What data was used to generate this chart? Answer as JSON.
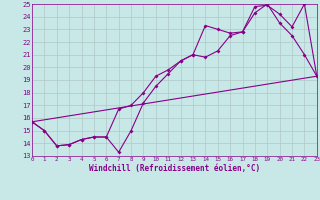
{
  "xlabel": "Windchill (Refroidissement éolien,°C)",
  "bg_color": "#c8e8e8",
  "grid_color": "#b0c8c8",
  "line_color": "#880088",
  "line1_x": [
    0,
    1,
    2,
    3,
    4,
    5,
    6,
    7,
    8,
    9,
    10,
    11,
    12,
    13,
    14,
    15,
    16,
    17,
    18,
    19,
    20,
    21,
    22,
    23
  ],
  "line1_y": [
    15.7,
    15.0,
    13.8,
    13.9,
    14.3,
    14.5,
    14.5,
    13.3,
    15.0,
    17.2,
    18.5,
    19.5,
    20.5,
    21.0,
    23.3,
    23.0,
    22.7,
    22.8,
    24.8,
    24.9,
    24.2,
    23.2,
    25.0,
    19.3
  ],
  "line2_x": [
    0,
    1,
    2,
    3,
    4,
    5,
    6,
    7,
    8,
    9,
    10,
    11,
    12,
    13,
    14,
    15,
    16,
    17,
    18,
    19,
    20,
    21,
    22,
    23
  ],
  "line2_y": [
    15.7,
    15.0,
    13.8,
    13.9,
    14.3,
    14.5,
    14.5,
    16.7,
    17.0,
    18.0,
    19.3,
    19.8,
    20.5,
    21.0,
    20.8,
    21.3,
    22.5,
    22.8,
    24.3,
    25.0,
    23.5,
    22.5,
    21.0,
    19.3
  ],
  "line3_x": [
    0,
    23
  ],
  "line3_y": [
    15.7,
    19.3
  ],
  "xlim": [
    0,
    23
  ],
  "ylim": [
    13,
    25
  ],
  "yticks": [
    13,
    14,
    15,
    16,
    17,
    18,
    19,
    20,
    21,
    22,
    23,
    24,
    25
  ],
  "xticks": [
    0,
    1,
    2,
    3,
    4,
    5,
    6,
    7,
    8,
    9,
    10,
    11,
    12,
    13,
    14,
    15,
    16,
    17,
    18,
    19,
    20,
    21,
    22,
    23
  ]
}
